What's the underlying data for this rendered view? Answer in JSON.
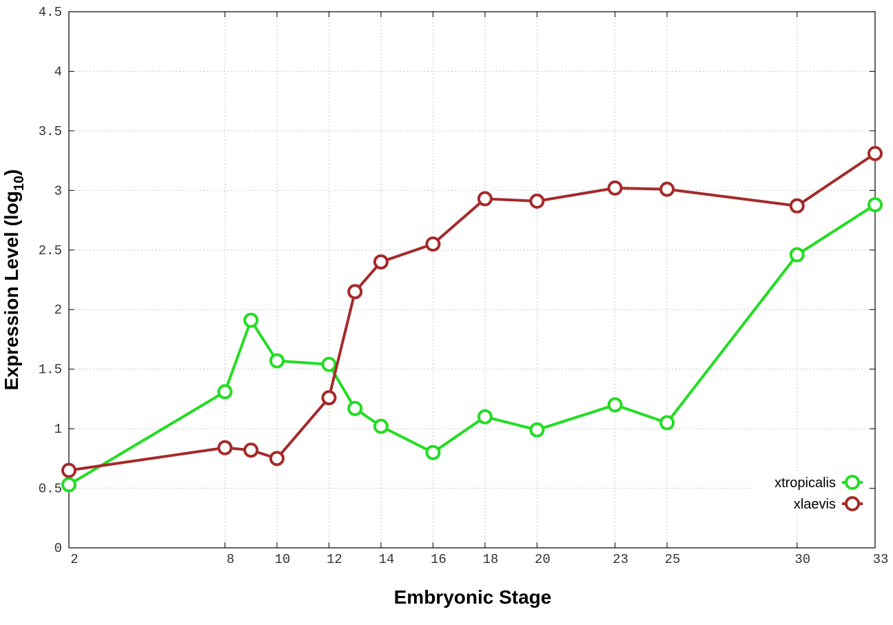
{
  "chart_data": {
    "type": "line",
    "xlabel": "Embryonic Stage",
    "ylabel_parts": [
      "Expression Level (log",
      "10",
      ")"
    ],
    "x": [
      2,
      8,
      9,
      10,
      12,
      13,
      14,
      16,
      18,
      20,
      23,
      25,
      30,
      33
    ],
    "series": [
      {
        "name": "xtropicalis",
        "color": "#22dd22",
        "values": [
          0.53,
          1.31,
          1.91,
          1.57,
          1.54,
          1.17,
          1.02,
          0.8,
          1.1,
          0.99,
          1.2,
          1.05,
          2.46,
          2.88
        ]
      },
      {
        "name": "xlaevis",
        "color": "#a52a2a",
        "values": [
          0.65,
          0.84,
          0.82,
          0.75,
          1.26,
          2.15,
          2.4,
          2.55,
          2.93,
          2.91,
          3.02,
          3.01,
          2.87,
          3.31
        ]
      }
    ],
    "xlim": [
      2,
      33
    ],
    "xticks": [
      2,
      8,
      10,
      12,
      14,
      16,
      18,
      20,
      23,
      25,
      30,
      33
    ],
    "ylim": [
      0,
      4.5
    ],
    "yticks": [
      0,
      0.5,
      1,
      1.5,
      2,
      2.5,
      3,
      3.5,
      4,
      4.5
    ],
    "grid": true,
    "legend": "bottom right"
  }
}
